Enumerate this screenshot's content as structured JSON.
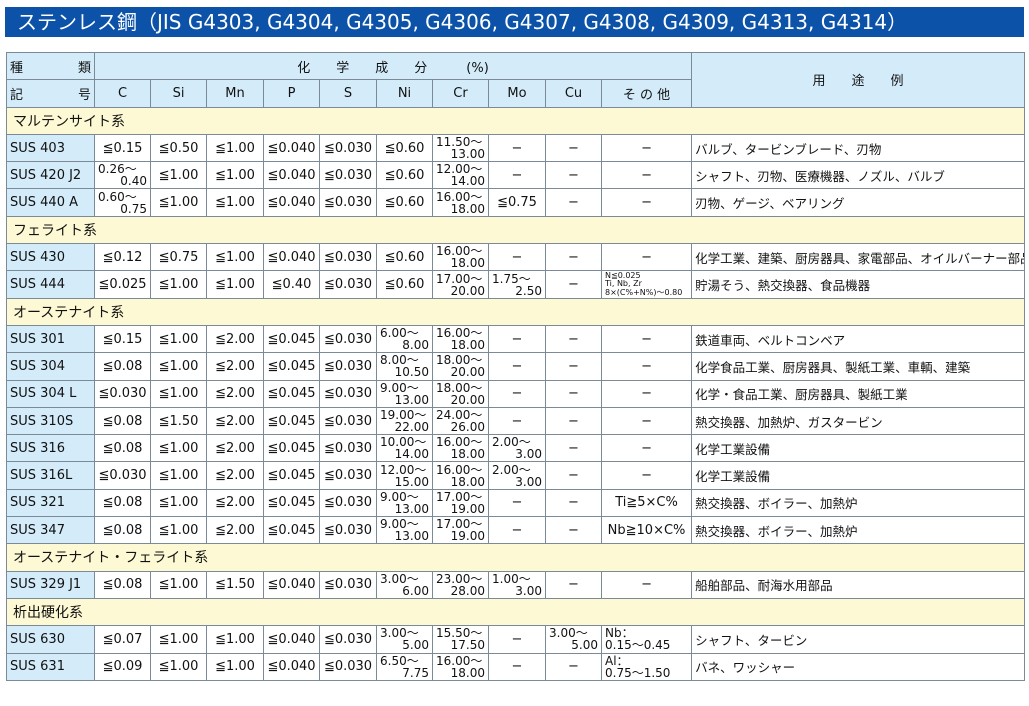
{
  "title": "ステンレス鋼（JIS G4303, G4304, G4305, G4306, G4307, G4308, G4309, G4313, G4314）",
  "header": {
    "type_top": [
      "種",
      "類"
    ],
    "type_bottom": [
      "記",
      "号"
    ],
    "composition": "化　　学　　成　　分　　　(%)",
    "use": "用　　途　　例",
    "columns": [
      "C",
      "Si",
      "Mn",
      "P",
      "S",
      "Ni",
      "Cr",
      "Mo",
      "Cu",
      "そ の 他"
    ]
  },
  "groups": [
    {
      "label": "マルテンサイト系",
      "rows": [
        {
          "name": "SUS 403",
          "cells": [
            "≦0.15",
            "≦0.50",
            "≦1.00",
            "≦0.040",
            "≦0.030",
            "≦0.60",
            [
              "11.50〜",
              "13.00"
            ],
            "−",
            "−",
            "−"
          ],
          "use": "バルブ、タービンブレード、刃物"
        },
        {
          "name": "SUS 420 J2",
          "cells": [
            [
              "0.26〜",
              "0.40"
            ],
            "≦1.00",
            "≦1.00",
            "≦0.040",
            "≦0.030",
            "≦0.60",
            [
              "12.00〜",
              "14.00"
            ],
            "−",
            "−",
            "−"
          ],
          "use": "シャフト、刃物、医療機器、ノズル、バルブ"
        },
        {
          "name": "SUS 440 A",
          "cells": [
            [
              "0.60〜",
              "0.75"
            ],
            "≦1.00",
            "≦1.00",
            "≦0.040",
            "≦0.030",
            "≦0.60",
            [
              "16.00〜",
              "18.00"
            ],
            "≦0.75",
            "−",
            "−"
          ],
          "use": "刃物、ゲージ、ベアリング"
        }
      ]
    },
    {
      "label": "フェライト系",
      "rows": [
        {
          "name": "SUS 430",
          "cells": [
            "≦0.12",
            "≦0.75",
            "≦1.00",
            "≦0.040",
            "≦0.030",
            "≦0.60",
            [
              "16.00〜",
              "18.00"
            ],
            "−",
            "−",
            "−"
          ],
          "use": "化学工業、建築、厨房器具、家電部品、オイルバーナー部品"
        },
        {
          "name": "SUS 444",
          "cells": [
            "≦0.025",
            "≦1.00",
            "≦1.00",
            "≦0.40",
            "≦0.030",
            "≦0.60",
            [
              "17.00〜",
              "20.00"
            ],
            [
              "1.75〜",
              "2.50"
            ],
            "−",
            [
              "N≦0.025",
              "Ti, Nb, Zr",
              "8×(C%+N%)〜0.80"
            ]
          ],
          "use": "貯湯そう、熱交換器、食品機器"
        }
      ]
    },
    {
      "label": "オーステナイト系",
      "rows": [
        {
          "name": "SUS 301",
          "cells": [
            "≦0.15",
            "≦1.00",
            "≦2.00",
            "≦0.045",
            "≦0.030",
            [
              "6.00〜",
              "8.00"
            ],
            [
              "16.00〜",
              "18.00"
            ],
            "−",
            "−",
            "−"
          ],
          "use": "鉄道車両、ベルトコンベア"
        },
        {
          "name": "SUS 304",
          "cells": [
            "≦0.08",
            "≦1.00",
            "≦2.00",
            "≦0.045",
            "≦0.030",
            [
              "8.00〜",
              "10.50"
            ],
            [
              "18.00〜",
              "20.00"
            ],
            "−",
            "−",
            "−"
          ],
          "use": "化学食品工業、厨房器具、製紙工業、車輌、建築"
        },
        {
          "name": "SUS 304 L",
          "cells": [
            "≦0.030",
            "≦1.00",
            "≦2.00",
            "≦0.045",
            "≦0.030",
            [
              "9.00〜",
              "13.00"
            ],
            [
              "18.00〜",
              "20.00"
            ],
            "−",
            "−",
            "−"
          ],
          "use": "化学・食品工業、厨房器具、製紙工業"
        },
        {
          "name": "SUS 310S",
          "cells": [
            "≦0.08",
            "≦1.50",
            "≦2.00",
            "≦0.045",
            "≦0.030",
            [
              "19.00〜",
              "22.00"
            ],
            [
              "24.00〜",
              "26.00"
            ],
            "−",
            "−",
            "−"
          ],
          "use": "熱交換器、加熱炉、ガスタービン"
        },
        {
          "name": "SUS 316",
          "cells": [
            "≦0.08",
            "≦1.00",
            "≦2.00",
            "≦0.045",
            "≦0.030",
            [
              "10.00〜",
              "14.00"
            ],
            [
              "16.00〜",
              "18.00"
            ],
            [
              "2.00〜",
              "3.00"
            ],
            "−",
            "−"
          ],
          "use": "化学工業設備"
        },
        {
          "name": "SUS 316L",
          "cells": [
            "≦0.030",
            "≦1.00",
            "≦2.00",
            "≦0.045",
            "≦0.030",
            [
              "12.00〜",
              "15.00"
            ],
            [
              "16.00〜",
              "18.00"
            ],
            [
              "2.00〜",
              "3.00"
            ],
            "−",
            "−"
          ],
          "use": "化学工業設備"
        },
        {
          "name": "SUS 321",
          "cells": [
            "≦0.08",
            "≦1.00",
            "≦2.00",
            "≦0.045",
            "≦0.030",
            [
              "9.00〜",
              "13.00"
            ],
            [
              "17.00〜",
              "19.00"
            ],
            "−",
            "−",
            "Ti≧5×C%"
          ],
          "use": "熱交換器、ボイラー、加熱炉"
        },
        {
          "name": "SUS 347",
          "cells": [
            "≦0.08",
            "≦1.00",
            "≦2.00",
            "≦0.045",
            "≦0.030",
            [
              "9.00〜",
              "13.00"
            ],
            [
              "17.00〜",
              "19.00"
            ],
            "−",
            "−",
            "Nb≧10×C%"
          ],
          "use": "熱交換器、ボイラー、加熱炉"
        }
      ]
    },
    {
      "label": "オーステナイト・フェライト系",
      "rows": [
        {
          "name": "SUS 329 J1",
          "cells": [
            "≦0.08",
            "≦1.00",
            "≦1.50",
            "≦0.040",
            "≦0.030",
            [
              "3.00〜",
              "6.00"
            ],
            [
              "23.00〜",
              "28.00"
            ],
            [
              "1.00〜",
              "3.00"
            ],
            "−",
            "−"
          ],
          "use": "船舶部品、耐海水用部品"
        }
      ]
    },
    {
      "label": "析出硬化系",
      "rows": [
        {
          "name": "SUS 630",
          "cells": [
            "≦0.07",
            "≦1.00",
            "≦1.00",
            "≦0.040",
            "≦0.030",
            [
              "3.00〜",
              "5.00"
            ],
            [
              "15.50〜",
              "17.50"
            ],
            "−",
            [
              "3.00〜",
              "5.00"
            ],
            [
              "Nb：",
              "0.15〜0.45"
            ]
          ],
          "use": "シャフト、タービン"
        },
        {
          "name": "SUS 631",
          "cells": [
            "≦0.09",
            "≦1.00",
            "≦1.00",
            "≦0.040",
            "≦0.030",
            [
              "6.50〜",
              "7.75"
            ],
            [
              "16.00〜",
              "18.00"
            ],
            "−",
            "−",
            [
              "Al：",
              "0.75〜1.50"
            ]
          ],
          "use": "バネ、ワッシャー"
        }
      ]
    }
  ]
}
